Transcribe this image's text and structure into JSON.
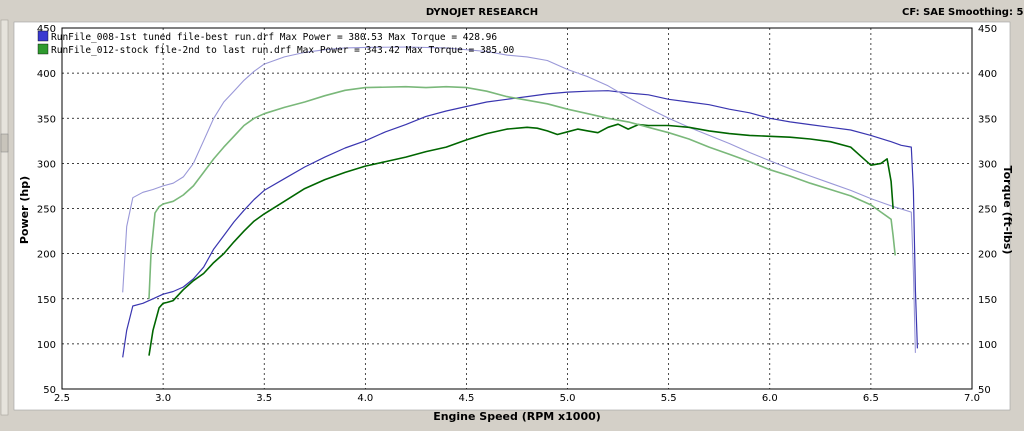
{
  "header": {
    "title": "DYNOJET RESEARCH",
    "cf_label": "CF: SAE",
    "smoothing_label": "Smoothing: 5"
  },
  "colors": {
    "run1_power": "#3a36b0",
    "run1_torque": "#9a98d8",
    "run2_power": "#006600",
    "run2_torque": "#7ab87a",
    "legend_blue": "#3a3ad0",
    "legend_green": "#2f9a2f"
  },
  "chart_data": {
    "type": "line",
    "xlabel": "Engine Speed (RPM x1000)",
    "ylabel": "Power (hp)",
    "y2label": "Torque (ft-lbs)",
    "xlim": [
      2.5,
      7.0
    ],
    "ylim": [
      50,
      450
    ],
    "y2lim": [
      50,
      450
    ],
    "x_ticks": [
      "2.5",
      "3.0",
      "3.5",
      "4.0",
      "4.5",
      "5.0",
      "5.5",
      "6.0",
      "6.5",
      "7.0"
    ],
    "y_ticks": [
      "50",
      "100",
      "150",
      "200",
      "250",
      "300",
      "350",
      "400",
      "450"
    ],
    "y2_ticks": [
      "50",
      "100",
      "150",
      "200",
      "250",
      "300",
      "350",
      "400",
      "450"
    ],
    "grid": true,
    "legend": [
      "RunFile_008-1st tuned file-best run.drf Max Power = 380.53 Max Torque = 428.96",
      "RunFile_012-stock file-2nd to last run.drf Max Power = 343.42 Max Torque = 385.00"
    ],
    "legend_placement": "top-left",
    "series": [
      {
        "axis": "left",
        "points": [
          [
            2.8,
            85
          ],
          [
            2.82,
            115
          ],
          [
            2.85,
            142
          ],
          [
            2.9,
            145
          ],
          [
            2.95,
            150
          ],
          [
            3.0,
            155
          ],
          [
            3.05,
            158
          ],
          [
            3.1,
            163
          ],
          [
            3.15,
            172
          ],
          [
            3.2,
            185
          ],
          [
            3.25,
            205
          ],
          [
            3.3,
            220
          ],
          [
            3.35,
            235
          ],
          [
            3.4,
            248
          ],
          [
            3.45,
            260
          ],
          [
            3.5,
            270
          ],
          [
            3.6,
            283
          ],
          [
            3.7,
            296
          ],
          [
            3.8,
            307
          ],
          [
            3.9,
            317
          ],
          [
            4.0,
            325
          ],
          [
            4.1,
            335
          ],
          [
            4.2,
            343
          ],
          [
            4.3,
            352
          ],
          [
            4.4,
            358
          ],
          [
            4.5,
            363
          ],
          [
            4.6,
            368
          ],
          [
            4.7,
            371
          ],
          [
            4.8,
            374
          ],
          [
            4.9,
            377
          ],
          [
            5.0,
            379
          ],
          [
            5.1,
            380
          ],
          [
            5.2,
            380.5
          ],
          [
            5.3,
            378
          ],
          [
            5.4,
            376
          ],
          [
            5.5,
            371
          ],
          [
            5.6,
            368
          ],
          [
            5.7,
            365
          ],
          [
            5.8,
            360
          ],
          [
            5.9,
            356
          ],
          [
            6.0,
            350
          ],
          [
            6.1,
            346
          ],
          [
            6.2,
            343
          ],
          [
            6.3,
            340
          ],
          [
            6.4,
            337
          ],
          [
            6.5,
            331
          ],
          [
            6.6,
            324
          ],
          [
            6.65,
            320
          ],
          [
            6.7,
            318
          ],
          [
            6.71,
            270
          ],
          [
            6.72,
            160
          ],
          [
            6.73,
            95
          ]
        ]
      },
      {
        "axis": "right",
        "points": [
          [
            2.8,
            157
          ],
          [
            2.82,
            230
          ],
          [
            2.85,
            262
          ],
          [
            2.9,
            268
          ],
          [
            2.95,
            271
          ],
          [
            3.0,
            275
          ],
          [
            3.05,
            278
          ],
          [
            3.1,
            285
          ],
          [
            3.15,
            300
          ],
          [
            3.2,
            325
          ],
          [
            3.25,
            350
          ],
          [
            3.3,
            368
          ],
          [
            3.35,
            380
          ],
          [
            3.4,
            392
          ],
          [
            3.45,
            402
          ],
          [
            3.5,
            410
          ],
          [
            3.6,
            418
          ],
          [
            3.7,
            423
          ],
          [
            3.8,
            426
          ],
          [
            3.9,
            428
          ],
          [
            4.0,
            428.5
          ],
          [
            4.2,
            428.96
          ],
          [
            4.4,
            428
          ],
          [
            4.6,
            424
          ],
          [
            4.7,
            420
          ],
          [
            4.8,
            418
          ],
          [
            4.9,
            414
          ],
          [
            5.0,
            404
          ],
          [
            5.1,
            396
          ],
          [
            5.2,
            386
          ],
          [
            5.3,
            373
          ],
          [
            5.4,
            361
          ],
          [
            5.5,
            350
          ],
          [
            5.6,
            340
          ],
          [
            5.7,
            331
          ],
          [
            5.8,
            322
          ],
          [
            5.9,
            312
          ],
          [
            6.0,
            303
          ],
          [
            6.1,
            294
          ],
          [
            6.2,
            286
          ],
          [
            6.3,
            278
          ],
          [
            6.4,
            270
          ],
          [
            6.5,
            261
          ],
          [
            6.6,
            253
          ],
          [
            6.7,
            246
          ],
          [
            6.71,
            180
          ],
          [
            6.72,
            90
          ]
        ]
      },
      {
        "axis": "left",
        "points": [
          [
            2.93,
            87
          ],
          [
            2.95,
            115
          ],
          [
            2.98,
            140
          ],
          [
            3.0,
            145
          ],
          [
            3.02,
            146
          ],
          [
            3.05,
            148
          ],
          [
            3.1,
            160
          ],
          [
            3.15,
            170
          ],
          [
            3.2,
            178
          ],
          [
            3.25,
            190
          ],
          [
            3.3,
            200
          ],
          [
            3.35,
            213
          ],
          [
            3.4,
            225
          ],
          [
            3.45,
            236
          ],
          [
            3.5,
            244
          ],
          [
            3.6,
            258
          ],
          [
            3.7,
            272
          ],
          [
            3.8,
            282
          ],
          [
            3.9,
            290
          ],
          [
            4.0,
            297
          ],
          [
            4.1,
            302
          ],
          [
            4.2,
            307
          ],
          [
            4.3,
            313
          ],
          [
            4.4,
            318
          ],
          [
            4.5,
            326
          ],
          [
            4.6,
            333
          ],
          [
            4.7,
            338
          ],
          [
            4.8,
            340
          ],
          [
            4.85,
            339
          ],
          [
            4.9,
            336
          ],
          [
            4.95,
            332
          ],
          [
            5.0,
            335
          ],
          [
            5.05,
            338
          ],
          [
            5.1,
            336
          ],
          [
            5.15,
            334
          ],
          [
            5.2,
            340
          ],
          [
            5.25,
            343.4
          ],
          [
            5.3,
            338
          ],
          [
            5.35,
            343
          ],
          [
            5.4,
            342
          ],
          [
            5.5,
            342
          ],
          [
            5.6,
            340
          ],
          [
            5.7,
            336
          ],
          [
            5.8,
            333
          ],
          [
            5.9,
            331
          ],
          [
            6.0,
            330
          ],
          [
            6.1,
            329
          ],
          [
            6.2,
            327
          ],
          [
            6.3,
            324
          ],
          [
            6.4,
            318
          ],
          [
            6.45,
            308
          ],
          [
            6.5,
            298
          ],
          [
            6.55,
            300
          ],
          [
            6.58,
            305
          ],
          [
            6.6,
            280
          ],
          [
            6.61,
            250
          ]
        ]
      },
      {
        "axis": "right",
        "points": [
          [
            2.93,
            150
          ],
          [
            2.94,
            200
          ],
          [
            2.96,
            245
          ],
          [
            2.98,
            252
          ],
          [
            3.0,
            255
          ],
          [
            3.05,
            258
          ],
          [
            3.1,
            265
          ],
          [
            3.15,
            275
          ],
          [
            3.2,
            290
          ],
          [
            3.25,
            305
          ],
          [
            3.3,
            318
          ],
          [
            3.35,
            330
          ],
          [
            3.4,
            342
          ],
          [
            3.45,
            350
          ],
          [
            3.5,
            355
          ],
          [
            3.6,
            362
          ],
          [
            3.7,
            368
          ],
          [
            3.8,
            375
          ],
          [
            3.9,
            381
          ],
          [
            4.0,
            384
          ],
          [
            4.2,
            385
          ],
          [
            4.3,
            384
          ],
          [
            4.4,
            385
          ],
          [
            4.5,
            384
          ],
          [
            4.6,
            380
          ],
          [
            4.7,
            374
          ],
          [
            4.8,
            370
          ],
          [
            4.9,
            366
          ],
          [
            5.0,
            360
          ],
          [
            5.1,
            355
          ],
          [
            5.2,
            350
          ],
          [
            5.3,
            346
          ],
          [
            5.4,
            340
          ],
          [
            5.5,
            334
          ],
          [
            5.6,
            327
          ],
          [
            5.7,
            318
          ],
          [
            5.8,
            310
          ],
          [
            5.9,
            302
          ],
          [
            6.0,
            293
          ],
          [
            6.1,
            286
          ],
          [
            6.2,
            278
          ],
          [
            6.3,
            271
          ],
          [
            6.4,
            264
          ],
          [
            6.5,
            254
          ],
          [
            6.55,
            246
          ],
          [
            6.6,
            238
          ],
          [
            6.61,
            220
          ],
          [
            6.62,
            198
          ]
        ]
      }
    ]
  }
}
